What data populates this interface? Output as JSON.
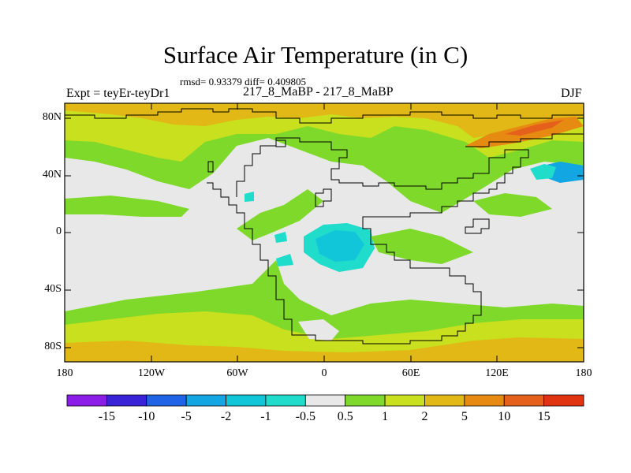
{
  "title": "Surface Air Temperature (in C)",
  "stats": "rmsd= 0.93379 diff= 0.409805",
  "left_label": "Expt = teyEr-teyDr1",
  "center_label": "217_8_MaBP - 217_8_MaBP",
  "right_label": "DJF",
  "lat_labels": [
    "80N",
    "40N",
    "0",
    "40S",
    "80S"
  ],
  "lon_labels": [
    "180",
    "120W",
    "60W",
    "0",
    "60E",
    "120E",
    "180"
  ],
  "colorbar": {
    "labels": [
      "-15",
      "-10",
      "-5",
      "-2",
      "-1",
      "-0.5",
      "0.5",
      "1",
      "2",
      "5",
      "10",
      "15"
    ],
    "colors": [
      "#8c1de8",
      "#3a22d6",
      "#1f63e6",
      "#12a6e2",
      "#10c6d8",
      "#20dccb",
      "#e8e8e8",
      "#7fd92a",
      "#c8e01d",
      "#e2b816",
      "#e68a12",
      "#e5601a",
      "#e0330f"
    ]
  },
  "colors": {
    "ocean_land_default": "#e8e8e8",
    "warm_light": "#7fd92a",
    "warm_mid": "#c8e01d",
    "warm_high": "#e2b816",
    "warm_very_high": "#e68a12",
    "cool_light": "#20dccb",
    "cool_mid": "#10c6d8",
    "cool_high": "#12a6e2"
  }
}
